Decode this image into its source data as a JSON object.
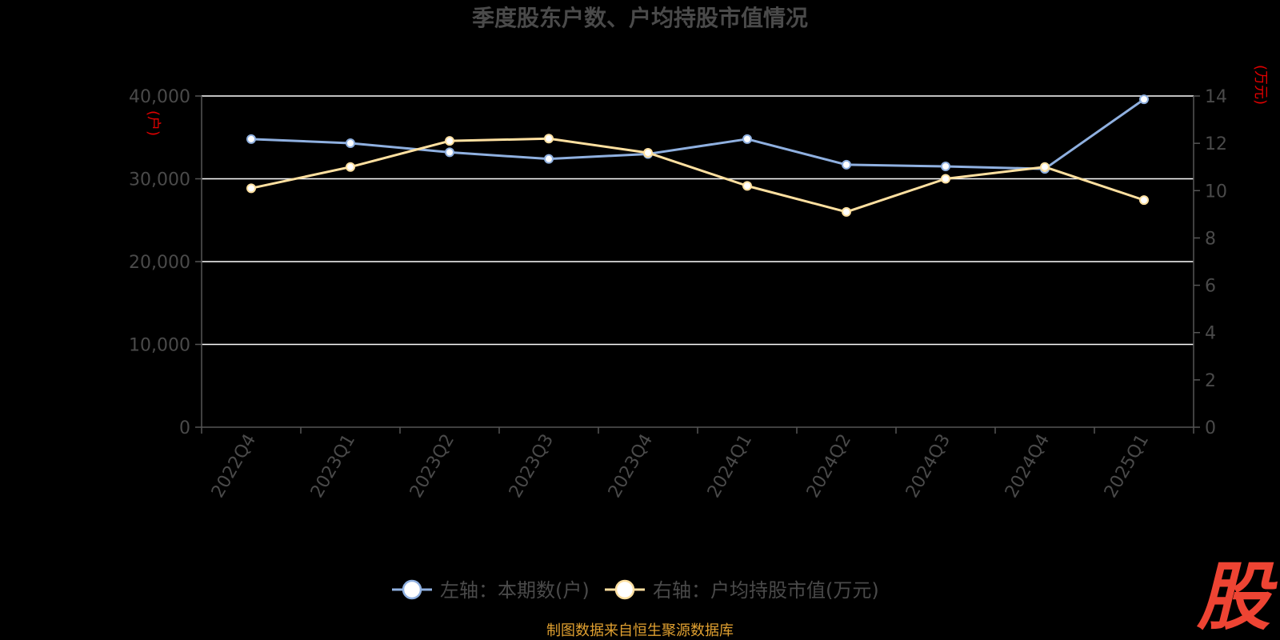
{
  "chart_data": {
    "type": "line",
    "title": "季度股东户数、户均持股市值情况",
    "categories": [
      "2022Q4",
      "2023Q1",
      "2023Q2",
      "2023Q3",
      "2023Q4",
      "2024Q1",
      "2024Q2",
      "2024Q3",
      "2024Q4",
      "2025Q1"
    ],
    "series": [
      {
        "name": "左轴：本期数(户)",
        "axis": "left",
        "color": "#8fb0e0",
        "values": [
          34800,
          34300,
          33200,
          32400,
          33000,
          34800,
          31700,
          31500,
          31200,
          39600
        ]
      },
      {
        "name": "右轴：户均持股市值(万元)",
        "axis": "right",
        "color": "#ffe0a0",
        "values": [
          10.1,
          11.0,
          12.1,
          12.2,
          11.6,
          10.2,
          9.1,
          10.5,
          11.0,
          9.6
        ]
      }
    ],
    "y_left": {
      "unit": "(户)",
      "ylim": [
        0,
        40000
      ],
      "ticks": [
        "0",
        "10,000",
        "20,000",
        "30,000",
        "40,000"
      ]
    },
    "y_right": {
      "unit": "(万元)",
      "ylim": [
        0,
        14
      ],
      "ticks": [
        "0",
        "2",
        "4",
        "6",
        "8",
        "10",
        "12",
        "14"
      ]
    },
    "grid": true,
    "legend_position": "bottom"
  },
  "footer": {
    "source": "制图数据来自恒生聚源数据库"
  },
  "logo": {
    "text": "股"
  }
}
